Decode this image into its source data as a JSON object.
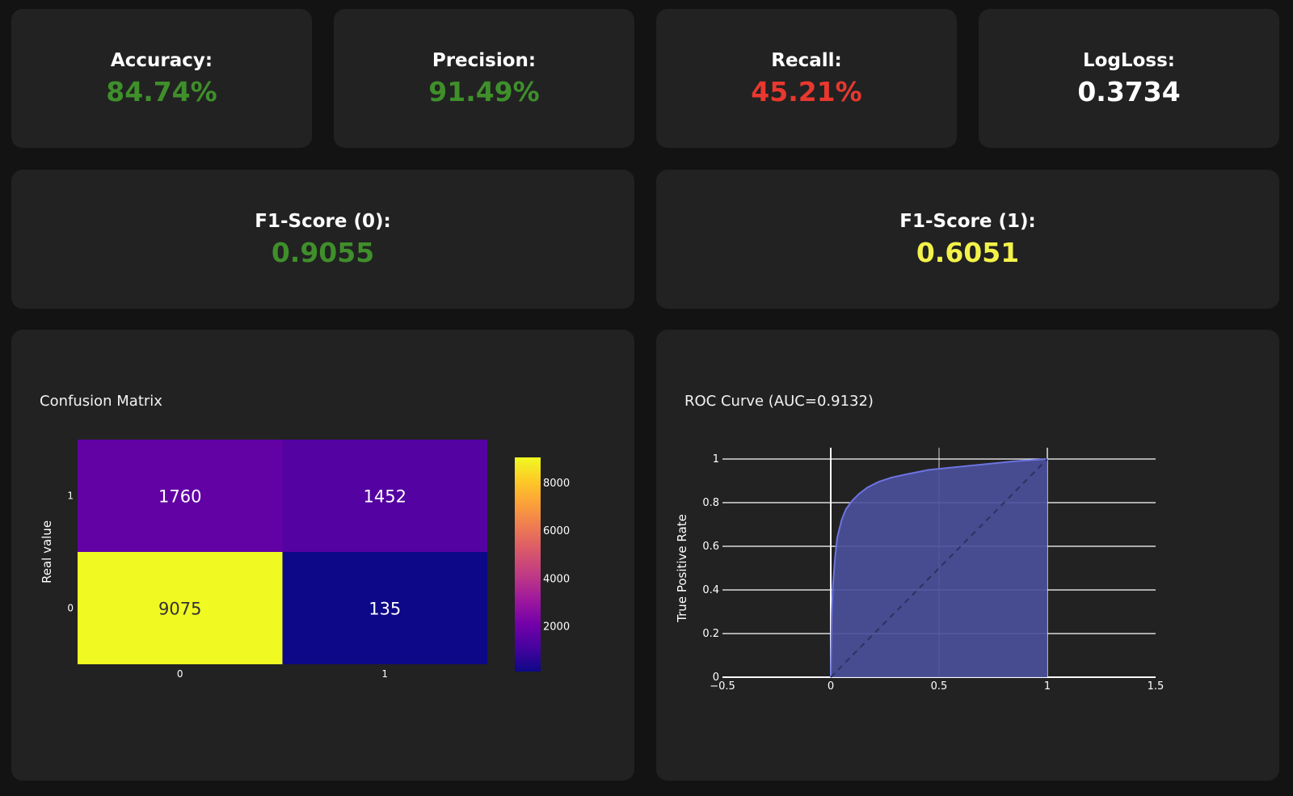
{
  "metrics": {
    "accuracy": {
      "label": "Accuracy:",
      "value": "84.74%",
      "color": "#3f8f2b"
    },
    "precision": {
      "label": "Precision:",
      "value": "91.49%",
      "color": "#3f8f2b"
    },
    "recall": {
      "label": "Recall:",
      "value": "45.21%",
      "color": "#e8382f"
    },
    "logloss": {
      "label": "LogLoss:",
      "value": "0.3734",
      "color": "#ffffff"
    },
    "f1_0": {
      "label": "F1-Score (0):",
      "value": "0.9055",
      "color": "#3f8f2b"
    },
    "f1_1": {
      "label": "F1-Score (1):",
      "value": "0.6051",
      "color": "#f2f24a"
    }
  },
  "chart_data": [
    {
      "type": "heatmap",
      "title": "Confusion Matrix",
      "xlabel": "",
      "ylabel": "Real value",
      "x_categories": [
        "0",
        "1"
      ],
      "y_categories": [
        "0",
        "1"
      ],
      "z": [
        [
          9075,
          135
        ],
        [
          1760,
          1452
        ]
      ],
      "colorscale": "Plasma",
      "colorbar": {
        "range": [
          135,
          9075
        ],
        "ticks": [
          2000,
          4000,
          6000,
          8000
        ],
        "tick_labels": [
          "2000",
          "4000",
          "6000",
          "8000"
        ]
      }
    },
    {
      "type": "area",
      "title": "ROC Curve (AUC=0.9132)",
      "xlabel": "",
      "ylabel": "True Positive Rate",
      "xlim": [
        -0.5,
        1.5
      ],
      "ylim": [
        0,
        1
      ],
      "x_ticks": [
        -0.5,
        0,
        0.5,
        1,
        1.5
      ],
      "x_tick_labels": [
        "−0.5",
        "0",
        "0.5",
        "1",
        "1.5"
      ],
      "y_ticks": [
        0,
        0.2,
        0.4,
        0.6,
        0.8,
        1
      ],
      "y_tick_labels": [
        "0",
        "0.2",
        "0.4",
        "0.6",
        "0.8",
        "1"
      ],
      "fill_color": "#4b4f9a",
      "line_color": "#6c74e0",
      "series": [
        {
          "x": [
            0,
            0.005,
            0.01,
            0.02,
            0.03,
            0.05,
            0.07,
            0.1,
            0.13,
            0.17,
            0.22,
            0.28,
            0.35,
            0.45,
            0.55,
            0.7,
            0.85,
            1.0
          ],
          "y": [
            0,
            0.3,
            0.42,
            0.55,
            0.64,
            0.72,
            0.77,
            0.81,
            0.84,
            0.87,
            0.895,
            0.915,
            0.93,
            0.95,
            0.96,
            0.975,
            0.99,
            1.0
          ]
        }
      ],
      "diagonal": {
        "x": [
          0,
          1
        ],
        "y": [
          0,
          1
        ],
        "style": "dashed"
      }
    }
  ]
}
